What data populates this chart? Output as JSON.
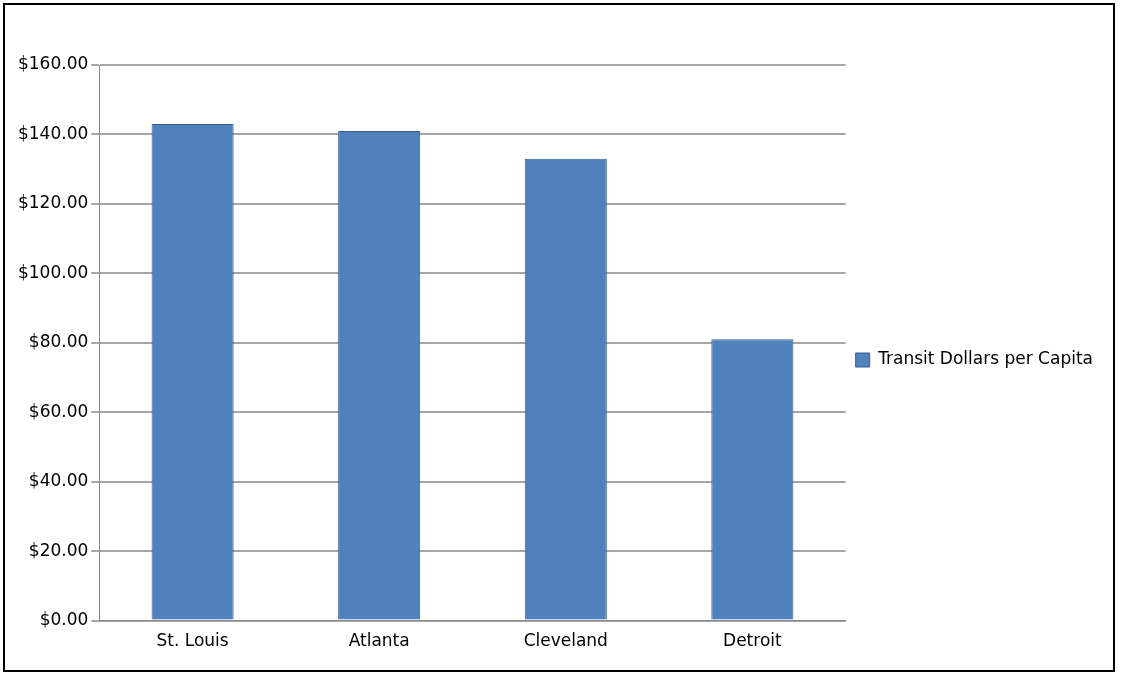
{
  "chart_data": {
    "type": "bar",
    "categories": [
      "St. Louis",
      "Atlanta",
      "Cleveland",
      "Detroit"
    ],
    "series": [
      {
        "name": "Transit Dollars per Capita",
        "color": "#4f81bd",
        "values": [
          143,
          141,
          133,
          81
        ]
      }
    ],
    "ylim": [
      0,
      160
    ],
    "yticks": [
      {
        "value": 0,
        "label": "$0.00"
      },
      {
        "value": 20,
        "label": "$20.00"
      },
      {
        "value": 40,
        "label": "$40.00"
      },
      {
        "value": 60,
        "label": "$60.00"
      },
      {
        "value": 80,
        "label": "$80.00"
      },
      {
        "value": 100,
        "label": "$100.00"
      },
      {
        "value": 120,
        "label": "$120.00"
      },
      {
        "value": 140,
        "label": "$140.00"
      },
      {
        "value": 160,
        "label": "$160.00"
      }
    ],
    "grid": "y",
    "legend": "right"
  }
}
